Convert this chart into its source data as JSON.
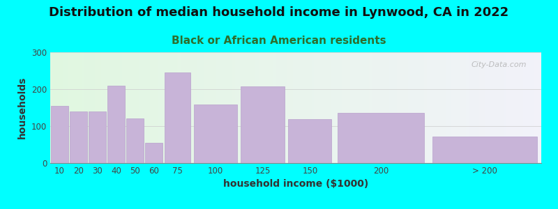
{
  "title": "Distribution of median household income in Lynwood, CA in 2022",
  "subtitle": "Black or African American residents",
  "xlabel": "household income ($1000)",
  "ylabel": "households",
  "background_color": "#00FFFF",
  "bar_color": "#C8B4D8",
  "bar_edge_color": "#B8A0CC",
  "categories": [
    "10",
    "20",
    "30",
    "40",
    "50",
    "60",
    "75",
    "100",
    "125",
    "150",
    "200",
    "> 200"
  ],
  "values": [
    155,
    140,
    140,
    210,
    120,
    55,
    245,
    158,
    208,
    118,
    135,
    72
  ],
  "bar_lefts": [
    0,
    10,
    20,
    30,
    40,
    50,
    60,
    75,
    100,
    125,
    150,
    200
  ],
  "bar_widths": [
    10,
    10,
    10,
    10,
    10,
    10,
    15,
    25,
    25,
    25,
    50,
    60
  ],
  "tick_positions": [
    5,
    15,
    25,
    35,
    45,
    55,
    67.5,
    87.5,
    112.5,
    137.5,
    175,
    230
  ],
  "xlim": [
    0,
    260
  ],
  "ylim": [
    0,
    300
  ],
  "yticks": [
    0,
    100,
    200,
    300
  ],
  "title_fontsize": 13,
  "subtitle_fontsize": 11,
  "axis_label_fontsize": 10,
  "tick_fontsize": 8.5,
  "watermark": "City-Data.com"
}
